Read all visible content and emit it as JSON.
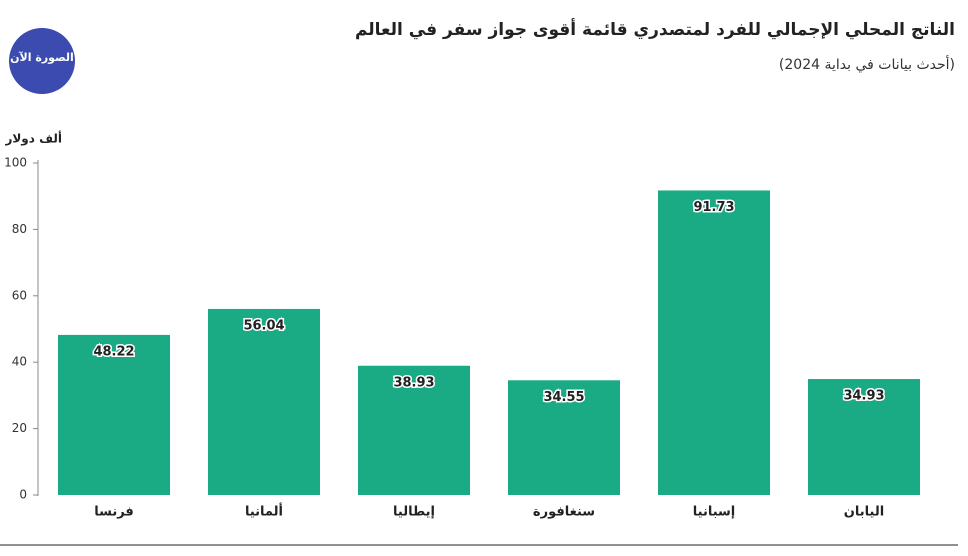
{
  "logo": "الصورة الآن",
  "chart_data": {
    "type": "bar",
    "title": "الناتج المحلي الإجمالي للفرد لمتصدري قائمة أقوى جواز سفر في العالم",
    "subtitle": "(أحدث بيانات في بداية 2024)",
    "y_label": "ألف دولار",
    "categories": [
      "فرنسا",
      "ألمانيا",
      "إيطاليا",
      "سنغافورة",
      "إسبانيا",
      "اليابان"
    ],
    "values": [
      48.22,
      56.04,
      38.93,
      34.55,
      91.73,
      34.93
    ],
    "color": "#1aab85",
    "ylim": [
      0,
      100
    ],
    "yticks": [
      0,
      20,
      40,
      60,
      80,
      100
    ],
    "grid": false
  }
}
